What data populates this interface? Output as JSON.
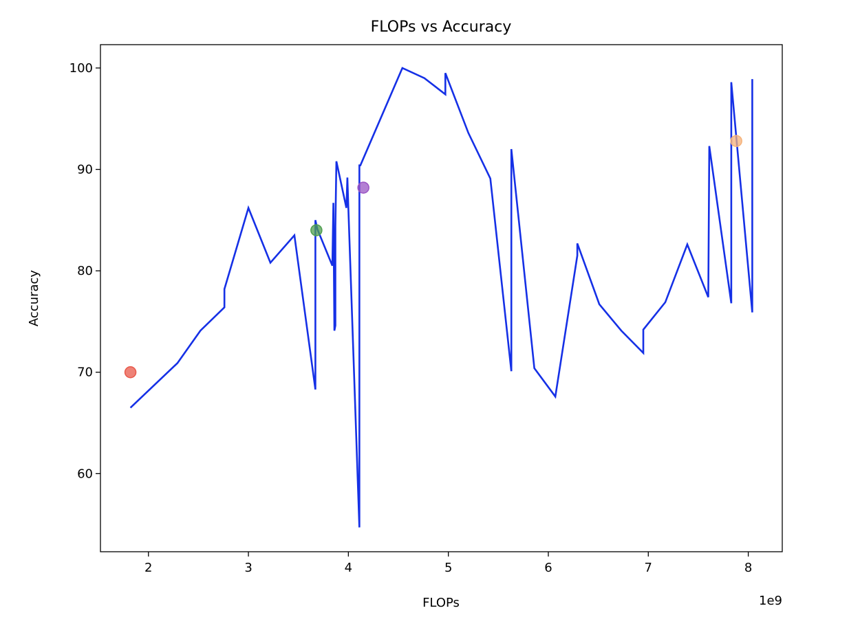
{
  "chart_data": {
    "type": "line",
    "title": "FLOPs vs Accuracy",
    "xlabel": "FLOPs",
    "ylabel": "Accuracy",
    "x_offset_label": "1e9",
    "xlim": [
      1.52,
      8.34
    ],
    "ylim": [
      52.3,
      102.3
    ],
    "x_ticks": [
      2,
      3,
      4,
      5,
      6,
      7,
      8
    ],
    "x_tick_labels": [
      "2",
      "3",
      "4",
      "5",
      "6",
      "7",
      "8"
    ],
    "y_ticks": [
      60,
      70,
      80,
      90,
      100
    ],
    "y_tick_labels": [
      "60",
      "70",
      "80",
      "90",
      "100"
    ],
    "grid": false,
    "line_color": "#1530e6",
    "series": [
      {
        "x": [
          1.82,
          2.29,
          2.52,
          2.76,
          2.76,
          3.0,
          3.22,
          3.46,
          3.67,
          3.67,
          3.69,
          3.84,
          3.85,
          3.86,
          3.87,
          3.87,
          3.88,
          3.98,
          3.99,
          4.0,
          4.11,
          4.11,
          4.12,
          4.54,
          4.76,
          4.97,
          4.97,
          5.2,
          5.42,
          5.63,
          5.63,
          5.86,
          6.07,
          6.29,
          6.29,
          6.51,
          6.73,
          6.95,
          6.95,
          7.17,
          7.39,
          7.6,
          7.61,
          7.83,
          7.83,
          8.04,
          8.04
        ],
        "y": [
          66.5,
          70.9,
          74.1,
          76.4,
          78.2,
          86.2,
          80.8,
          83.5,
          68.3,
          85.0,
          84.1,
          80.5,
          86.7,
          74.1,
          74.6,
          84.4,
          90.8,
          86.2,
          89.2,
          86.1,
          54.7,
          90.4,
          90.4,
          100.0,
          99.0,
          97.4,
          99.5,
          93.6,
          89.1,
          70.1,
          92.0,
          70.4,
          67.6,
          81.5,
          82.7,
          76.7,
          74.1,
          71.9,
          74.2,
          76.9,
          82.6,
          77.4,
          92.3,
          76.8,
          98.6,
          75.9,
          98.9
        ]
      }
    ],
    "points": [
      {
        "x": 1.82,
        "y": 70.0,
        "color": "#e8584a"
      },
      {
        "x": 3.68,
        "y": 84.0,
        "color": "#4f9e4f"
      },
      {
        "x": 4.15,
        "y": 88.2,
        "color": "#9a55c4"
      },
      {
        "x": 7.88,
        "y": 92.8,
        "color": "#f5b27a"
      }
    ]
  }
}
